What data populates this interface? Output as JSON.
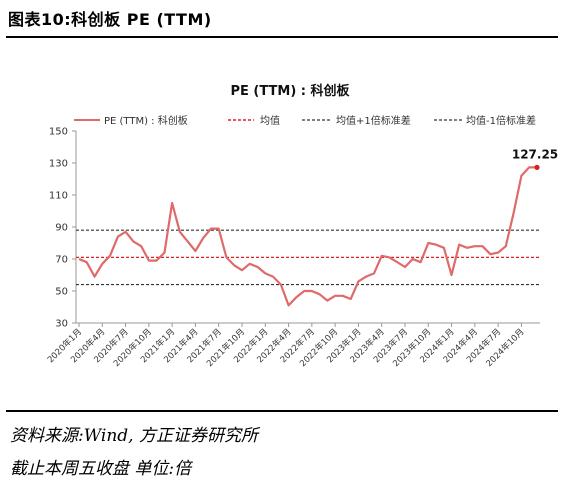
{
  "figure": {
    "title": "图表10:科创板 PE (TTM)",
    "source": "资料来源:Wind, 方正证券研究所",
    "note": "截止本周五收盘 单位:倍"
  },
  "colors": {
    "series": "#e06a6a",
    "mean": "#e02020",
    "band": "#333333",
    "marker": "#e02020"
  },
  "chart_data": {
    "type": "line",
    "title": "PE (TTM) : 科创板",
    "legend": {
      "placement": "top",
      "entries": [
        "PE (TTM) : 科创板",
        "均值",
        "均值+1倍标准差",
        "均值-1倍标准差"
      ]
    },
    "ylim": [
      30,
      150
    ],
    "yticks": [
      30,
      50,
      70,
      90,
      110,
      130,
      150
    ],
    "xtick_labels": [
      "2020年1月",
      "2020年4月",
      "2020年7月",
      "2020年10月",
      "2021年1月",
      "2021年4月",
      "2021年7月",
      "2021年10月",
      "2022年1月",
      "2022年4月",
      "2022年7月",
      "2022年10月",
      "2023年1月",
      "2023年4月",
      "2023年7月",
      "2023年10月",
      "2024年1月",
      "2024年4月",
      "2024年7月",
      "2024年10月"
    ],
    "reference_lines": {
      "mean": 71,
      "plus1sd": 88,
      "minus1sd": 54
    },
    "series": [
      {
        "name": "PE (TTM) : 科创板",
        "x": [
          0,
          0.33,
          0.67,
          1,
          1.33,
          1.67,
          2,
          2.33,
          2.67,
          3,
          3.33,
          3.67,
          4,
          4.33,
          4.67,
          5,
          5.33,
          5.67,
          6,
          6.33,
          6.67,
          7,
          7.33,
          7.67,
          8,
          8.33,
          8.67,
          9,
          9.33,
          9.67,
          10,
          10.33,
          10.67,
          11,
          11.33,
          11.67,
          12,
          12.33,
          12.67,
          13,
          13.33,
          13.67,
          14,
          14.33,
          14.67,
          15,
          15.33,
          15.67,
          16,
          16.33,
          16.67,
          17,
          17.33,
          17.67,
          18,
          18.33,
          18.67,
          19,
          19.33,
          19.67
        ],
        "values": [
          70,
          68,
          59,
          67,
          72,
          84,
          87,
          81,
          78,
          69,
          69,
          74,
          105,
          87,
          81,
          75,
          83,
          89,
          89,
          71,
          66,
          63,
          67,
          65,
          61,
          59,
          54,
          41,
          46,
          50,
          50,
          48,
          44,
          47,
          47,
          45,
          56,
          59,
          61,
          72,
          71,
          68,
          65,
          70,
          68,
          80,
          79,
          77,
          60,
          79,
          77,
          78,
          78,
          73,
          74,
          78,
          99,
          122,
          127.25,
          127.25
        ],
        "end_label": "127.25"
      }
    ]
  }
}
